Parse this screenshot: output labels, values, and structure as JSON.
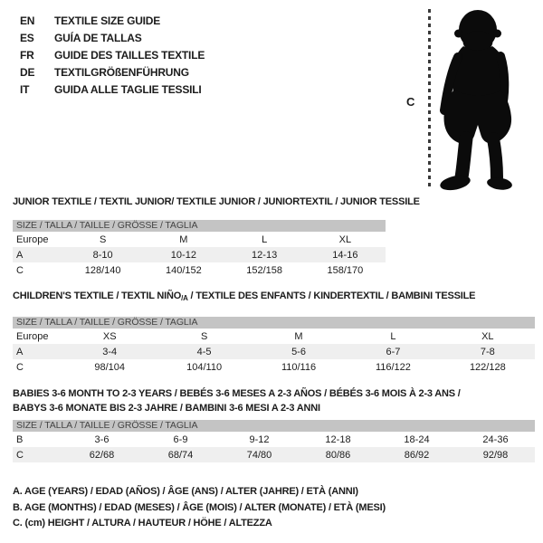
{
  "languages": [
    {
      "code": "EN",
      "title": "TEXTILE SIZE GUIDE"
    },
    {
      "code": "ES",
      "title": "GUÍA DE TALLAS"
    },
    {
      "code": "FR",
      "title": "GUIDE DES TAILLES TEXTILE"
    },
    {
      "code": "DE",
      "title": "TEXTILGRÖßENFÜHRUNG"
    },
    {
      "code": "IT",
      "title": "GUIDA ALLE TAGLIE TESSILI"
    }
  ],
  "figure": {
    "icon": "baby-silhouette",
    "label": "C"
  },
  "colors": {
    "header_bar": "#c4c4c4",
    "row_shaded": "#efefef",
    "text": "#1c1c1c",
    "silhouette": "#0b0b0b"
  },
  "tables": [
    {
      "title": "JUNIOR TEXTILE / TEXTIL JUNIOR/ TEXTILE JUNIOR / JUNIORTEXTIL / JUNIOR TESSILE",
      "size_header": "SIZE / TALLA / TAILLE / GRÖSSE / TAGLIA",
      "rows": [
        {
          "label": "Europe",
          "values": [
            "S",
            "M",
            "L",
            "XL"
          ],
          "shaded": false
        },
        {
          "label": "A",
          "values": [
            "8-10",
            "10-12",
            "12-13",
            "14-16"
          ],
          "shaded": true
        },
        {
          "label": "C",
          "values": [
            "128/140",
            "140/152",
            "152/158",
            "158/170"
          ],
          "shaded": false
        }
      ]
    },
    {
      "title_parts": {
        "before": "CHILDREN'S TEXTILE / TEXTIL NIÑO",
        "sub": "/A",
        "after": " / TEXTILE DES ENFANTS / KINDERTEXTIL / BAMBINI TESSILE"
      },
      "size_header": "SIZE / TALLA / TAILLE / GRÖSSE / TAGLIA",
      "rows": [
        {
          "label": "Europe",
          "values": [
            "XS",
            "S",
            "M",
            "L",
            "XL"
          ],
          "shaded": false
        },
        {
          "label": "A",
          "values": [
            "3-4",
            "4-5",
            "5-6",
            "6-7",
            "7-8"
          ],
          "shaded": true
        },
        {
          "label": "C",
          "values": [
            "98/104",
            "104/110",
            "110/116",
            "116/122",
            "122/128"
          ],
          "shaded": false
        }
      ]
    },
    {
      "title_line1": "BABIES 3-6 MONTH TO 2-3 YEARS / BEBÉS 3-6 MESES A 2-3 AÑOS / BÉBÉS 3-6 MOIS À 2-3 ANS /",
      "title_line2": "BABYS 3-6 MONATE BIS 2-3 JAHRE / BAMBINI 3-6 MESI A 2-3 ANNI",
      "size_header": "SIZE / TALLA / TAILLE / GRÖSSE / TAGLIA",
      "rows": [
        {
          "label": "B",
          "values": [
            "3-6",
            "6-9",
            "9-12",
            "12-18",
            "18-24",
            "24-36"
          ],
          "shaded": false
        },
        {
          "label": "C",
          "values": [
            "62/68",
            "68/74",
            "74/80",
            "80/86",
            "86/92",
            "92/98"
          ],
          "shaded": true
        }
      ]
    }
  ],
  "footnotes": [
    "A. AGE (YEARS) / EDAD (AÑOS) / ÂGE (ANS) / ALTER (JAHRE) / ETÀ (ANNI)",
    "B. AGE (MONTHS) / EDAD (MESES) / ÂGE (MOIS) / ALTER (MONATE) / ETÀ (MESI)",
    "C. (cm) HEIGHT / ALTURA / HAUTEUR / HÖHE / ALTEZZA"
  ]
}
